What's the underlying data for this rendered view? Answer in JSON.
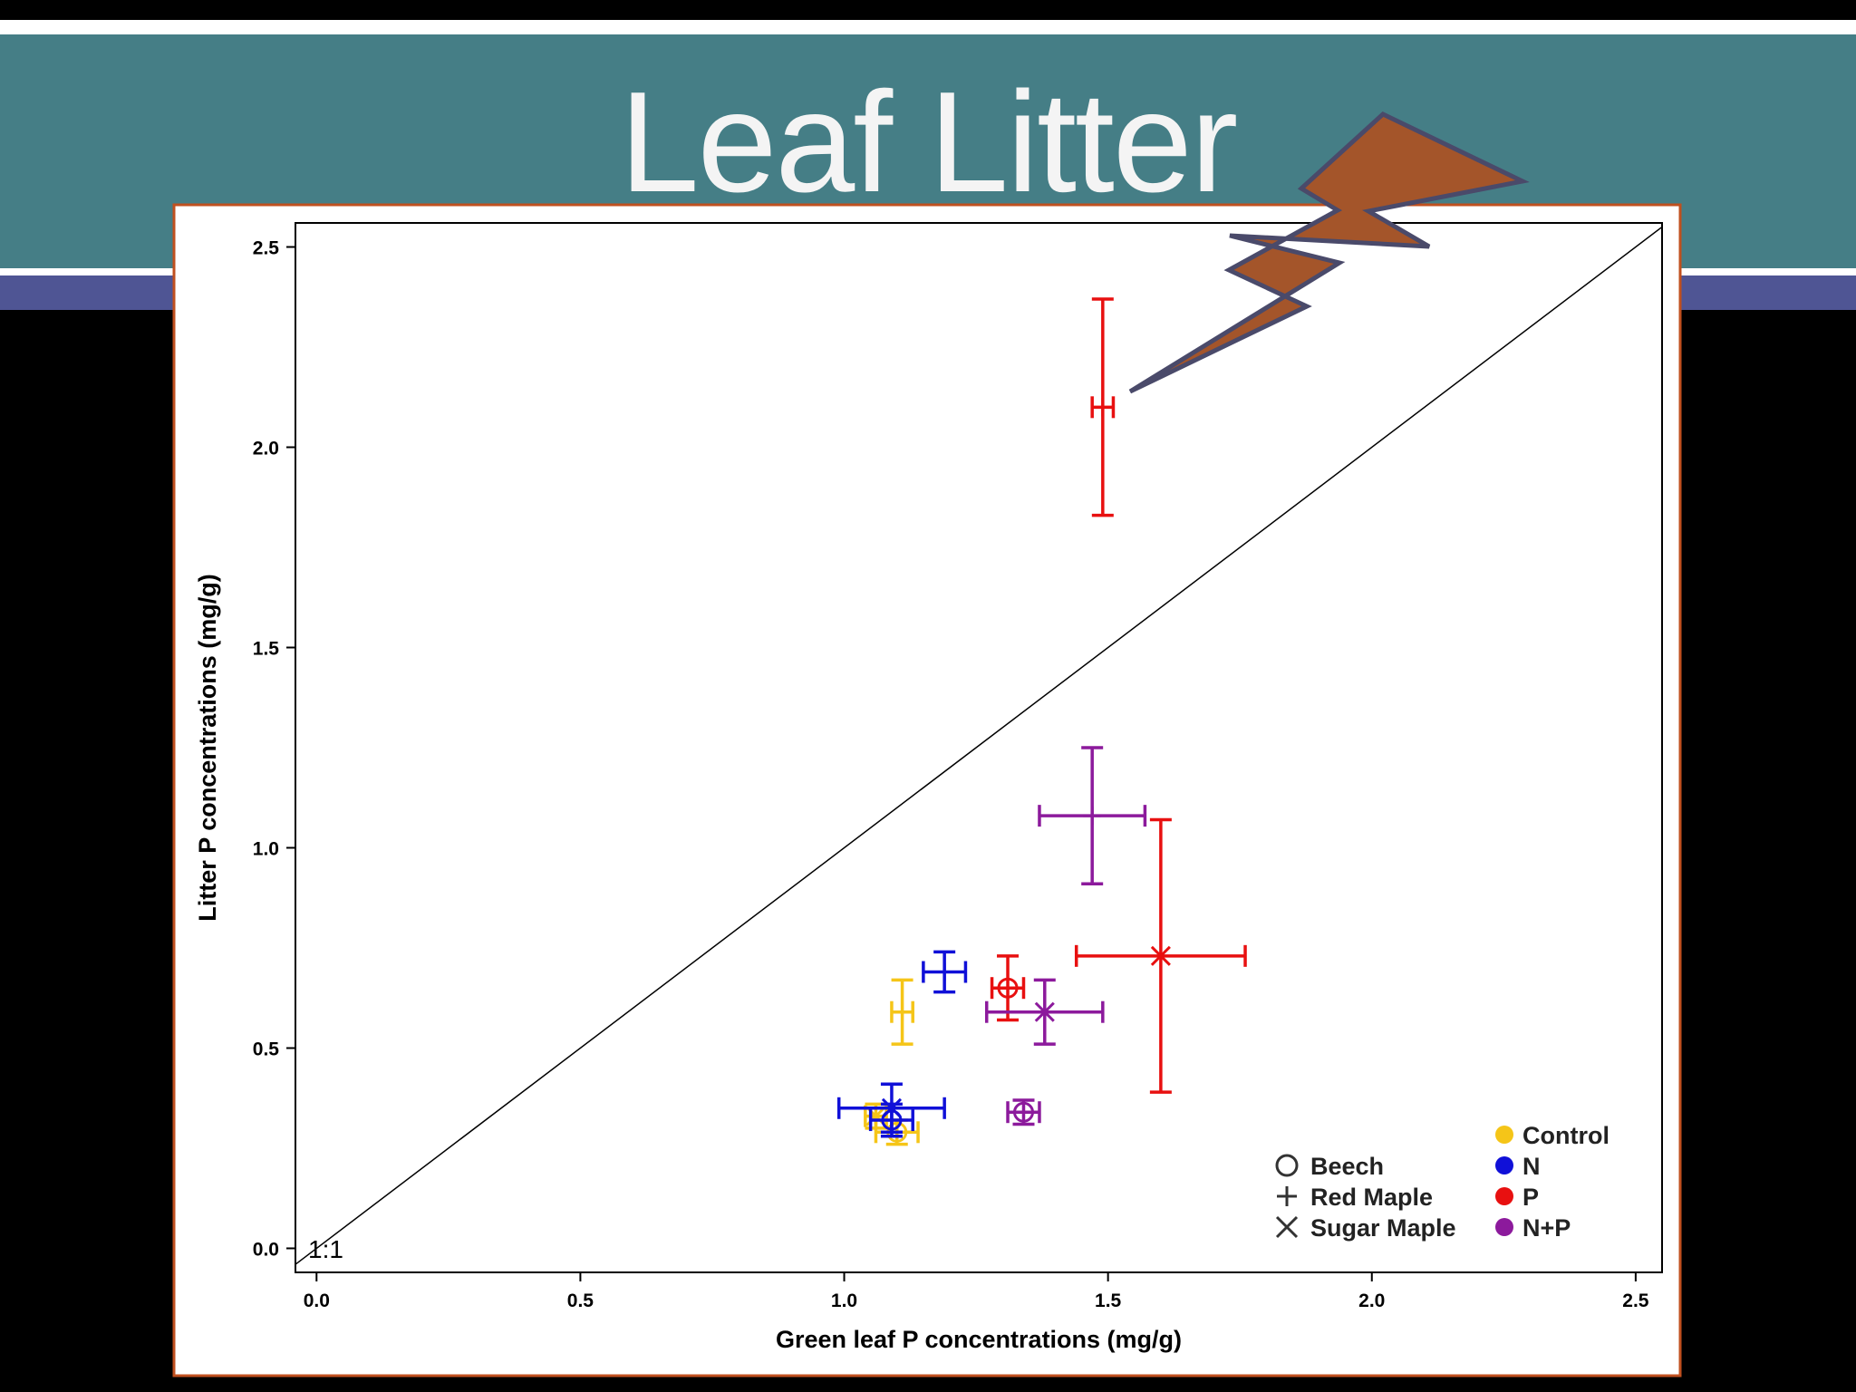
{
  "slide": {
    "title": "Leaf Litter"
  },
  "legend": {
    "species": [
      {
        "name": "Beech",
        "marker": "circle"
      },
      {
        "name": "Red Maple",
        "marker": "plus"
      },
      {
        "name": "Sugar Maple",
        "marker": "x"
      }
    ],
    "treatments": [
      {
        "name": "Control",
        "color": "#f5c518"
      },
      {
        "name": "N",
        "color": "#1010d8"
      },
      {
        "name": "P",
        "color": "#e81010"
      },
      {
        "name": "N+P",
        "color": "#8c1a9c"
      }
    ]
  },
  "chart_data": {
    "type": "scatter",
    "title": "",
    "xlabel": "Green leaf P concentrations (mg/g)",
    "ylabel": "Litter P concentrations (mg/g)",
    "xlim": [
      -0.04,
      2.55
    ],
    "ylim": [
      -0.06,
      2.56
    ],
    "xticks": [
      "0.0",
      "0.5",
      "1.0",
      "1.5",
      "2.0",
      "2.5"
    ],
    "yticks": [
      "0.0",
      "0.5",
      "1.0",
      "1.5",
      "2.0",
      "2.5"
    ],
    "reference_line": {
      "label": "1:1",
      "slope": 1,
      "intercept": 0
    },
    "grid": false,
    "legend_position": "bottom-right",
    "points": [
      {
        "species": "Beech",
        "treatment": "Control",
        "x": 1.1,
        "y": 0.29,
        "xerr": 0.04,
        "yerr": 0.03
      },
      {
        "species": "Red Maple",
        "treatment": "Control",
        "x": 1.11,
        "y": 0.59,
        "xerr": 0.02,
        "yerr": 0.08
      },
      {
        "species": "Sugar Maple",
        "treatment": "Control",
        "x": 1.06,
        "y": 0.33,
        "xerr": 0.02,
        "yerr": 0.03
      },
      {
        "species": "Beech",
        "treatment": "N",
        "x": 1.09,
        "y": 0.32,
        "xerr": 0.04,
        "yerr": 0.04
      },
      {
        "species": "Red Maple",
        "treatment": "N",
        "x": 1.19,
        "y": 0.69,
        "xerr": 0.04,
        "yerr": 0.05
      },
      {
        "species": "Sugar Maple",
        "treatment": "N",
        "x": 1.09,
        "y": 0.35,
        "xerr": 0.1,
        "yerr": 0.06
      },
      {
        "species": "Beech",
        "treatment": "P",
        "x": 1.31,
        "y": 0.65,
        "xerr": 0.03,
        "yerr": 0.08
      },
      {
        "species": "Red Maple",
        "treatment": "P",
        "x": 1.49,
        "y": 2.1,
        "xerr": 0.02,
        "yerr": 0.27
      },
      {
        "species": "Sugar Maple",
        "treatment": "P",
        "x": 1.6,
        "y": 0.73,
        "xerr": 0.16,
        "yerr": 0.34
      },
      {
        "species": "Beech",
        "treatment": "N+P",
        "x": 1.34,
        "y": 0.34,
        "xerr": 0.03,
        "yerr": 0.03
      },
      {
        "species": "Red Maple",
        "treatment": "N+P",
        "x": 1.47,
        "y": 1.08,
        "xerr": 0.1,
        "yerr": 0.17
      },
      {
        "species": "Sugar Maple",
        "treatment": "N+P",
        "x": 1.38,
        "y": 0.59,
        "xerr": 0.11,
        "yerr": 0.08
      }
    ]
  }
}
